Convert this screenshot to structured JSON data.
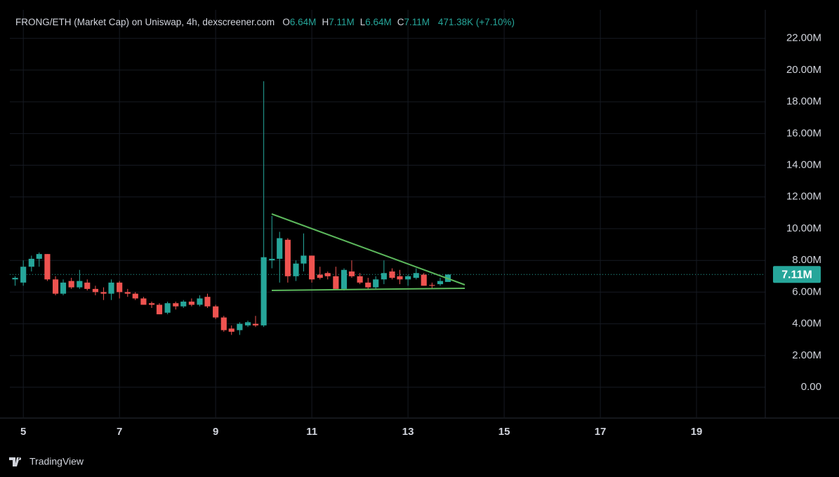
{
  "chart_data": {
    "type": "candlestick",
    "title": "FRONG/ETH (Market Cap) on Uniswap, 4h, dexscreener.com",
    "ohlc_legend": [
      {
        "key": "O",
        "text": "6.64M"
      },
      {
        "key": "H",
        "text": "7.11M"
      },
      {
        "key": "L",
        "text": "6.64M"
      },
      {
        "key": "C",
        "text": "7.11M"
      }
    ],
    "change": "471.38K (+7.10%)",
    "brand": "TradingView",
    "up_color": "#26a69a",
    "down_color": "#ef5350",
    "x": [
      4.83,
      5,
      5.17,
      5.33,
      5.5,
      5.67,
      5.83,
      6,
      6.17,
      6.33,
      6.5,
      6.67,
      6.83,
      7,
      7.17,
      7.33,
      7.5,
      7.67,
      7.83,
      8,
      8.17,
      8.33,
      8.5,
      8.67,
      8.83,
      9,
      9.17,
      9.33,
      9.5,
      9.67,
      9.83,
      10,
      10.17,
      10.33,
      10.5,
      10.67,
      10.83,
      11,
      11.17,
      11.33,
      11.5,
      11.67,
      11.83,
      12,
      12.17,
      12.33,
      12.5,
      12.67,
      12.83,
      13,
      13.17,
      13.33,
      13.5,
      13.67,
      13.83
    ],
    "open": [
      6.8,
      6.6,
      7.6,
      8.1,
      8.4,
      6.8,
      5.9,
      6.7,
      6.3,
      6.6,
      6.2,
      6.0,
      5.9,
      6.6,
      6.0,
      5.9,
      5.6,
      5.3,
      5.2,
      4.7,
      5.3,
      5.1,
      5.4,
      5.2,
      5.7,
      5.1,
      4.4,
      3.7,
      3.6,
      3.9,
      4.0,
      3.9,
      8.0,
      8.1,
      9.3,
      7.0,
      7.8,
      8.3,
      7.1,
      7.2,
      7.0,
      6.2,
      7.3,
      7.0,
      6.6,
      6.3,
      6.8,
      7.3,
      7.0,
      6.8,
      6.9,
      7.1,
      6.45,
      6.5,
      6.64
    ],
    "high": [
      7.0,
      8.0,
      8.3,
      8.5,
      8.4,
      7.0,
      6.8,
      6.9,
      7.4,
      6.8,
      6.4,
      6.3,
      6.8,
      6.7,
      6.2,
      6.0,
      5.7,
      5.4,
      5.3,
      5.4,
      5.4,
      5.5,
      5.6,
      5.8,
      5.9,
      5.2,
      4.5,
      3.9,
      4.1,
      4.2,
      4.5,
      19.3,
      10.8,
      9.8,
      9.4,
      8.0,
      9.7,
      8.3,
      7.6,
      7.3,
      7.6,
      7.5,
      8.0,
      7.2,
      6.9,
      7.0,
      8.0,
      7.5,
      7.4,
      7.1,
      7.5,
      7.2,
      6.6,
      6.9,
      7.11
    ],
    "low": [
      6.4,
      6.4,
      7.3,
      7.6,
      6.7,
      5.8,
      5.8,
      6.2,
      6.2,
      6.1,
      5.8,
      5.5,
      5.5,
      5.6,
      5.7,
      5.5,
      5.2,
      5.0,
      4.6,
      4.6,
      4.9,
      5.0,
      5.1,
      5.1,
      5.0,
      4.3,
      3.5,
      3.3,
      3.3,
      3.8,
      3.8,
      3.8,
      7.5,
      6.6,
      6.6,
      6.7,
      7.3,
      6.6,
      6.8,
      6.8,
      6.2,
      6.1,
      6.9,
      6.5,
      6.2,
      6.2,
      6.5,
      6.8,
      6.5,
      6.4,
      6.8,
      6.4,
      6.2,
      6.4,
      6.64
    ],
    "close": [
      6.9,
      7.6,
      8.1,
      8.4,
      6.8,
      5.9,
      6.6,
      6.3,
      6.7,
      6.2,
      6.0,
      5.9,
      6.6,
      6.0,
      5.9,
      5.6,
      5.2,
      5.2,
      4.6,
      5.3,
      5.1,
      5.4,
      5.2,
      5.6,
      5.1,
      4.4,
      3.6,
      3.5,
      4.0,
      4.1,
      3.9,
      8.2,
      8.1,
      9.4,
      7.0,
      7.8,
      8.3,
      6.8,
      6.9,
      7.0,
      6.2,
      7.4,
      7.0,
      6.6,
      6.3,
      6.8,
      7.2,
      6.9,
      6.8,
      7.0,
      7.2,
      6.4,
      6.4,
      6.7,
      7.11
    ],
    "xlim": [
      4.72,
      20.43
    ],
    "xticks": [
      5,
      7,
      9,
      11,
      13,
      15,
      17,
      19
    ],
    "ylim": [
      -1.9,
      23.8
    ],
    "yticks": [
      {
        "value": 0,
        "label": "0.00"
      },
      {
        "value": 2,
        "label": "2.00M"
      },
      {
        "value": 4,
        "label": "4.00M"
      },
      {
        "value": 6,
        "label": "6.00M"
      },
      {
        "value": 8,
        "label": "8.00M"
      },
      {
        "value": 10,
        "label": "10.00M"
      },
      {
        "value": 12,
        "label": "12.00M"
      },
      {
        "value": 14,
        "label": "14.00M"
      },
      {
        "value": 16,
        "label": "16.00M"
      },
      {
        "value": 18,
        "label": "18.00M"
      },
      {
        "value": 20,
        "label": "20.00M"
      },
      {
        "value": 22,
        "label": "22.00M"
      }
    ],
    "last_price": {
      "value": 7.11,
      "label": "7.11M"
    },
    "grid": true
  }
}
